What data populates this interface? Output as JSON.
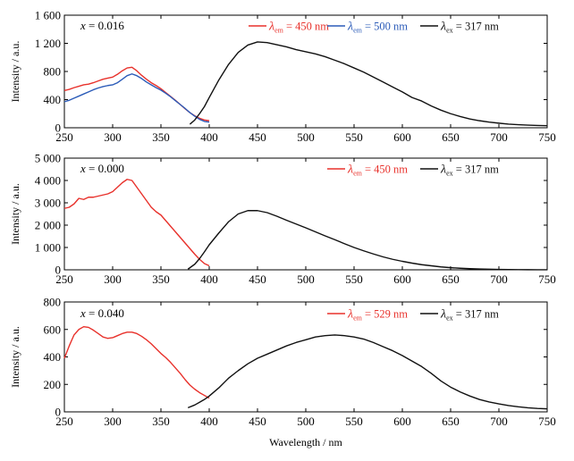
{
  "chart_data": [
    {
      "type": "line",
      "panel": "top",
      "annotation": {
        "var": "x",
        "text": " = 0.016"
      },
      "xlim": [
        250,
        750
      ],
      "ylim": [
        0,
        1600
      ],
      "xticks": [
        250,
        300,
        350,
        400,
        450,
        500,
        550,
        600,
        650,
        700,
        750
      ],
      "yticks": [
        0,
        400,
        800,
        1200,
        1600
      ],
      "ytick_labels": [
        "0",
        "400",
        "800",
        "1 200",
        "1 600"
      ],
      "ylabel": "Intensity / a.u.",
      "xlabel": "",
      "show_xtick_labels": true,
      "series": [
        {
          "name": "λem = 450 nm",
          "sym": "λ",
          "sub": "em",
          "rest": " = 450 nm",
          "color": "#e8312b",
          "x": [
            250,
            255,
            260,
            265,
            270,
            275,
            280,
            285,
            290,
            295,
            300,
            305,
            310,
            315,
            320,
            325,
            330,
            335,
            340,
            345,
            350,
            355,
            360,
            365,
            370,
            375,
            380,
            385,
            390,
            395,
            400
          ],
          "y": [
            530,
            545,
            570,
            590,
            610,
            620,
            640,
            665,
            690,
            705,
            720,
            760,
            810,
            850,
            860,
            810,
            745,
            690,
            640,
            600,
            555,
            500,
            445,
            390,
            330,
            270,
            215,
            170,
            135,
            110,
            100
          ]
        },
        {
          "name": "λem = 500 nm",
          "sym": "λ",
          "sub": "em",
          "rest": " = 500 nm",
          "color": "#2b5bb8",
          "x": [
            250,
            255,
            260,
            265,
            270,
            275,
            280,
            285,
            290,
            295,
            300,
            305,
            310,
            315,
            320,
            325,
            330,
            335,
            340,
            345,
            350,
            355,
            360,
            365,
            370,
            375,
            380,
            385,
            390,
            395,
            400
          ],
          "y": [
            370,
            390,
            420,
            450,
            480,
            510,
            540,
            565,
            585,
            600,
            610,
            640,
            690,
            740,
            765,
            740,
            700,
            650,
            610,
            570,
            535,
            490,
            440,
            385,
            330,
            275,
            215,
            165,
            120,
            90,
            80
          ]
        },
        {
          "name": "λex = 317 nm",
          "sym": "λ",
          "sub": "ex",
          "rest": " = 317 nm",
          "color": "#111111",
          "x": [
            380,
            385,
            390,
            395,
            400,
            410,
            420,
            430,
            440,
            450,
            460,
            470,
            480,
            490,
            500,
            510,
            520,
            530,
            540,
            550,
            560,
            570,
            580,
            590,
            600,
            610,
            620,
            630,
            640,
            650,
            660,
            670,
            680,
            690,
            700,
            710,
            720,
            730,
            740,
            750
          ],
          "y": [
            50,
            110,
            200,
            300,
            430,
            680,
            900,
            1070,
            1175,
            1220,
            1210,
            1180,
            1150,
            1110,
            1080,
            1050,
            1010,
            960,
            910,
            850,
            790,
            720,
            650,
            580,
            510,
            430,
            380,
            310,
            250,
            200,
            160,
            125,
            100,
            80,
            65,
            52,
            43,
            37,
            33,
            30
          ]
        }
      ]
    },
    {
      "type": "line",
      "panel": "middle",
      "annotation": {
        "var": "x",
        "text": " = 0.000"
      },
      "xlim": [
        250,
        750
      ],
      "ylim": [
        0,
        5000
      ],
      "xticks": [
        250,
        300,
        350,
        400,
        450,
        500,
        550,
        600,
        650,
        700,
        750
      ],
      "yticks": [
        0,
        1000,
        2000,
        3000,
        4000,
        5000
      ],
      "ytick_labels": [
        "0",
        "1 000",
        "2 000",
        "3 000",
        "4 000",
        "5 000"
      ],
      "ylabel": "Intensity / a.u.",
      "xlabel": "",
      "show_xtick_labels": true,
      "series": [
        {
          "name": "λem = 450 nm",
          "sym": "λ",
          "sub": "em",
          "rest": " = 450 nm",
          "color": "#e8312b",
          "x": [
            250,
            255,
            260,
            265,
            270,
            275,
            280,
            285,
            290,
            295,
            300,
            305,
            310,
            315,
            320,
            325,
            330,
            335,
            340,
            345,
            350,
            355,
            360,
            365,
            370,
            375,
            380,
            385,
            390,
            395,
            400
          ],
          "y": [
            2750,
            2800,
            2950,
            3200,
            3150,
            3250,
            3250,
            3300,
            3350,
            3400,
            3500,
            3700,
            3900,
            4050,
            4000,
            3700,
            3400,
            3100,
            2800,
            2600,
            2450,
            2200,
            1950,
            1700,
            1450,
            1200,
            950,
            700,
            470,
            280,
            180
          ]
        },
        {
          "name": "λex = 317 nm",
          "sym": "λ",
          "sub": "ex",
          "rest": " = 317 nm",
          "color": "#111111",
          "x": [
            378,
            385,
            390,
            395,
            400,
            410,
            420,
            430,
            440,
            450,
            460,
            470,
            480,
            490,
            500,
            510,
            520,
            530,
            540,
            550,
            560,
            570,
            580,
            590,
            600,
            610,
            620,
            630,
            640,
            650,
            660,
            670,
            680,
            690,
            700,
            710,
            720,
            730,
            740,
            750
          ],
          "y": [
            30,
            250,
            500,
            800,
            1120,
            1650,
            2150,
            2500,
            2650,
            2650,
            2560,
            2400,
            2220,
            2050,
            1880,
            1700,
            1520,
            1350,
            1170,
            1000,
            850,
            710,
            580,
            470,
            380,
            300,
            230,
            180,
            130,
            95,
            70,
            50,
            35,
            25,
            18,
            12,
            8,
            5,
            3,
            2
          ]
        }
      ]
    },
    {
      "type": "line",
      "panel": "bottom",
      "annotation": {
        "var": "x",
        "text": " = 0.040"
      },
      "xlim": [
        250,
        750
      ],
      "ylim": [
        0,
        800
      ],
      "xticks": [
        250,
        300,
        350,
        400,
        450,
        500,
        550,
        600,
        650,
        700,
        750
      ],
      "yticks": [
        0,
        200,
        400,
        600,
        800
      ],
      "ytick_labels": [
        "0",
        "200",
        "400",
        "600",
        "800"
      ],
      "ylabel": "Intensity / a.u.",
      "xlabel": "Wavelength / nm",
      "show_xtick_labels": true,
      "series": [
        {
          "name": "λem = 529 nm",
          "sym": "λ",
          "sub": "em",
          "rest": " = 529 nm",
          "color": "#e8312b",
          "x": [
            250,
            255,
            260,
            265,
            270,
            275,
            280,
            285,
            290,
            295,
            300,
            305,
            310,
            315,
            320,
            325,
            330,
            335,
            340,
            345,
            350,
            355,
            360,
            365,
            370,
            375,
            380,
            385,
            390,
            395,
            400
          ],
          "y": [
            390,
            480,
            560,
            600,
            620,
            615,
            595,
            570,
            545,
            535,
            540,
            555,
            570,
            580,
            580,
            570,
            550,
            525,
            495,
            460,
            425,
            395,
            360,
            320,
            280,
            235,
            195,
            165,
            140,
            120,
            100
          ]
        },
        {
          "name": "λex = 317 nm",
          "sym": "λ",
          "sub": "ex",
          "rest": " = 317 nm",
          "color": "#111111",
          "x": [
            378,
            385,
            390,
            395,
            400,
            410,
            420,
            430,
            440,
            450,
            460,
            470,
            480,
            490,
            500,
            510,
            520,
            530,
            540,
            550,
            560,
            570,
            580,
            590,
            600,
            610,
            620,
            630,
            640,
            650,
            660,
            670,
            680,
            690,
            700,
            710,
            720,
            730,
            740,
            750
          ],
          "y": [
            30,
            50,
            70,
            90,
            115,
            175,
            245,
            300,
            350,
            390,
            420,
            450,
            480,
            505,
            525,
            545,
            555,
            560,
            555,
            545,
            530,
            505,
            475,
            445,
            410,
            370,
            330,
            280,
            225,
            180,
            145,
            115,
            90,
            72,
            58,
            46,
            37,
            30,
            25,
            22
          ]
        }
      ]
    }
  ]
}
